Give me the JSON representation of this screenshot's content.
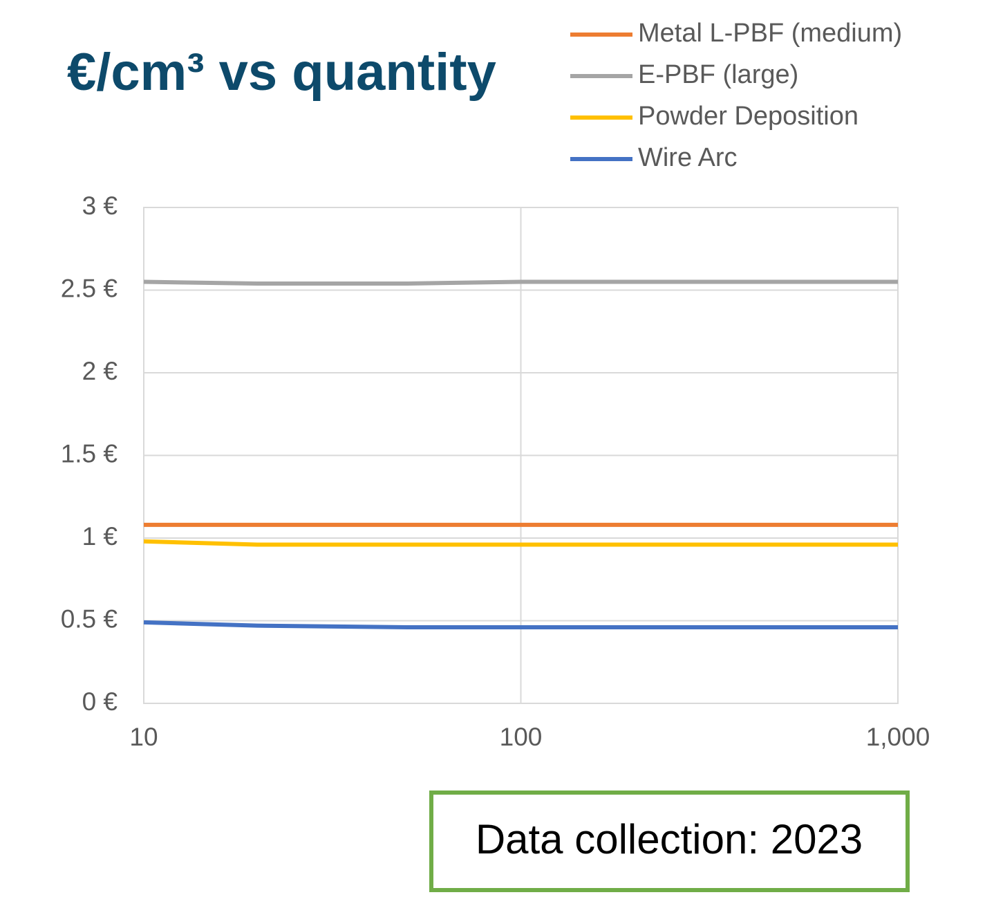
{
  "chart_data": {
    "type": "line",
    "title": "€/cm³ vs quantity",
    "annotation": "Data collection: 2023",
    "xscale": "log",
    "x": [
      10,
      20,
      50,
      100,
      200,
      500,
      1000
    ],
    "xlim": [
      10,
      1000
    ],
    "xticks": [
      10,
      100,
      {
        "value": 1000,
        "label": "1,000"
      }
    ],
    "ylim": [
      0,
      3
    ],
    "yticks": [
      {
        "value": 0,
        "label": "0 €"
      },
      {
        "value": 0.5,
        "label": "0.5 €"
      },
      {
        "value": 1,
        "label": "1 €"
      },
      {
        "value": 1.5,
        "label": "1.5 €"
      },
      {
        "value": 2,
        "label": "2 €"
      },
      {
        "value": 2.5,
        "label": "2.5 €"
      },
      {
        "value": 3,
        "label": "3 €"
      }
    ],
    "grid": true,
    "legend": "top-right",
    "series": [
      {
        "name": "Metal L-PBF (medium)",
        "color": "#ed7d31",
        "values": [
          1.08,
          1.08,
          1.08,
          1.08,
          1.08,
          1.08,
          1.08
        ]
      },
      {
        "name": "E-PBF (large)",
        "color": "#a5a5a5",
        "values": [
          2.55,
          2.54,
          2.54,
          2.55,
          2.55,
          2.55,
          2.55
        ]
      },
      {
        "name": "Powder Deposition",
        "color": "#ffc000",
        "values": [
          0.98,
          0.96,
          0.96,
          0.96,
          0.96,
          0.96,
          0.96
        ]
      },
      {
        "name": "Wire Arc",
        "color": "#4472c4",
        "values": [
          0.49,
          0.47,
          0.46,
          0.46,
          0.46,
          0.46,
          0.46
        ]
      }
    ]
  }
}
